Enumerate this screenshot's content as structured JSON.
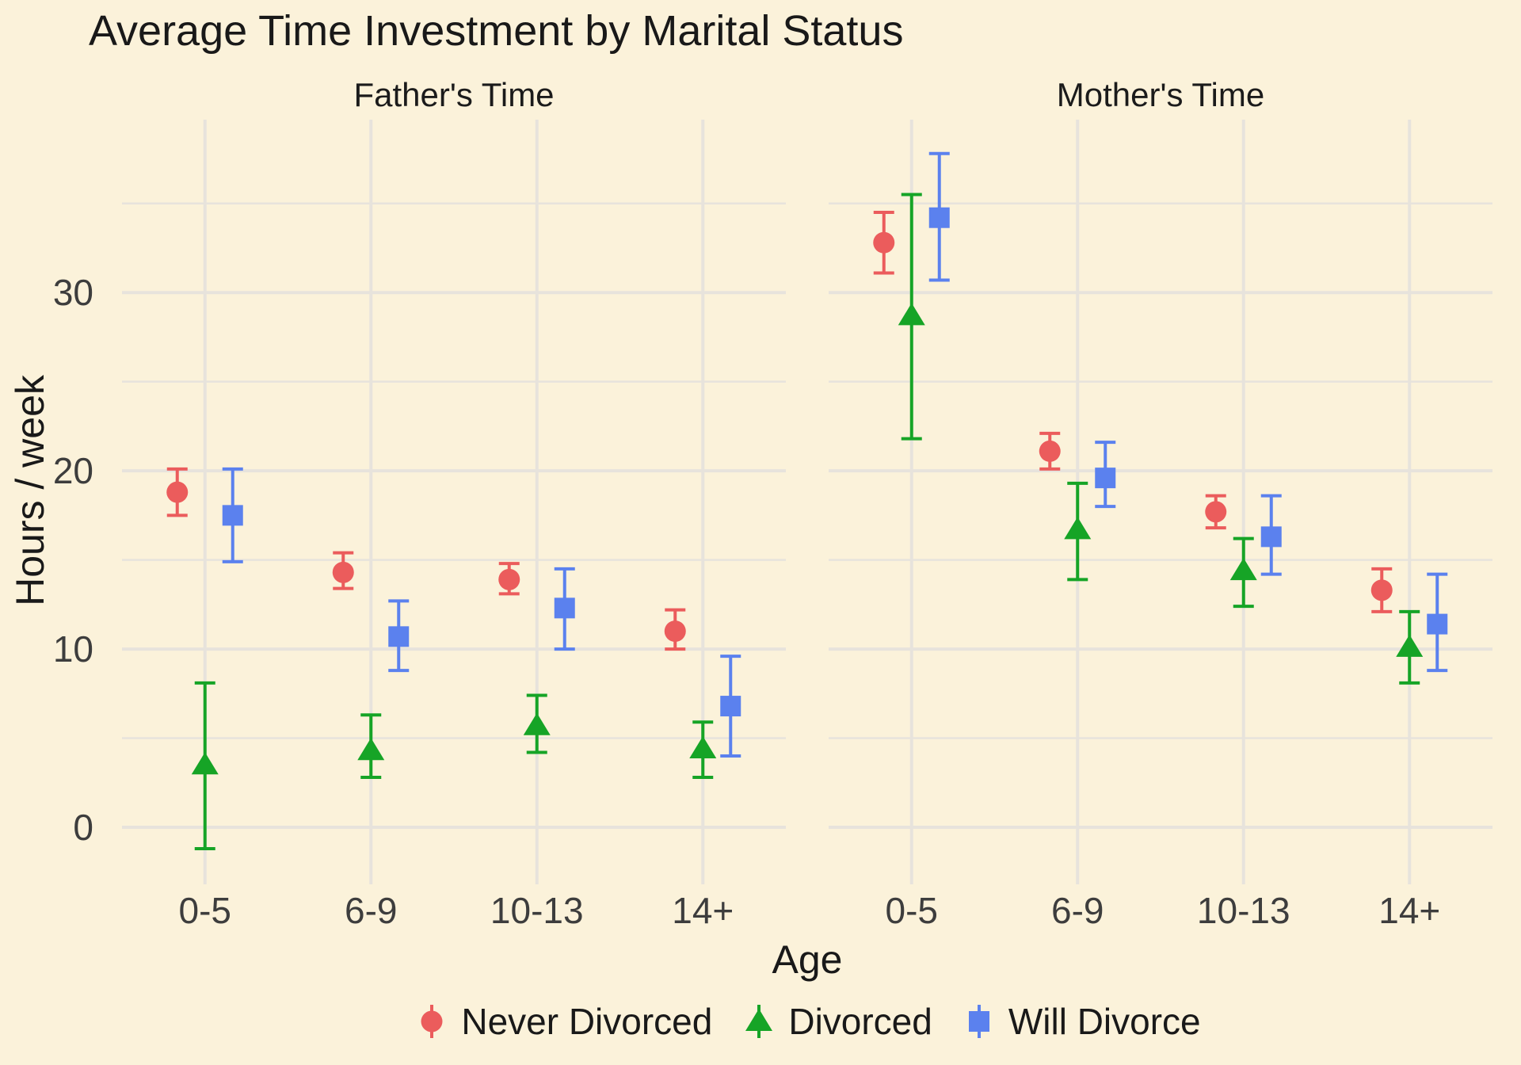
{
  "chart_data": {
    "type": "scatter",
    "subtype": "dodged-dot-plot-with-error-bars",
    "title": "Average Time Investment by Marital Status",
    "xlabel": "Age",
    "ylabel": "Hours / week",
    "categories": [
      "0-5",
      "6-9",
      "10-13",
      "14+"
    ],
    "yticks": [
      0,
      10,
      20,
      30
    ],
    "yminor": [
      5,
      15,
      25,
      35
    ],
    "ylim": [
      -3.2,
      39.7
    ],
    "grid": "on",
    "legend_position": "bottom",
    "colors": {
      "background": "#FBF2DA",
      "gridline": "#E7E3DC",
      "title_text": "#191919",
      "tick_text": "#3D3D3D",
      "never_divorced": "#EB5C5C",
      "divorced": "#16A426",
      "will_divorce": "#5B81EE"
    },
    "series_meta": [
      {
        "name": "Never Divorced",
        "shape": "circle",
        "color": "#EB5C5C"
      },
      {
        "name": "Divorced",
        "shape": "triangle",
        "color": "#16A426"
      },
      {
        "name": "Will Divorce",
        "shape": "square",
        "color": "#5B81EE"
      }
    ],
    "facets": [
      {
        "label": "Father's Time",
        "series": [
          {
            "name": "Never Divorced",
            "values": [
              18.8,
              14.3,
              13.9,
              11.0
            ],
            "ci_low": [
              17.5,
              13.4,
              13.1,
              10.0
            ],
            "ci_high": [
              20.1,
              15.4,
              14.8,
              12.2
            ]
          },
          {
            "name": "Divorced",
            "values": [
              3.5,
              4.3,
              5.7,
              4.4
            ],
            "ci_low": [
              -1.2,
              2.8,
              4.2,
              2.8
            ],
            "ci_high": [
              8.1,
              6.3,
              7.4,
              5.9
            ]
          },
          {
            "name": "Will Divorce",
            "values": [
              17.5,
              10.7,
              12.3,
              6.8
            ],
            "ci_low": [
              14.9,
              8.8,
              10.0,
              4.0
            ],
            "ci_high": [
              20.1,
              12.7,
              14.5,
              9.6
            ]
          }
        ]
      },
      {
        "label": "Mother's Time",
        "series": [
          {
            "name": "Never Divorced",
            "values": [
              32.8,
              21.1,
              17.7,
              13.3
            ],
            "ci_low": [
              31.1,
              20.1,
              16.8,
              12.1
            ],
            "ci_high": [
              34.5,
              22.1,
              18.6,
              14.5
            ]
          },
          {
            "name": "Divorced",
            "values": [
              28.7,
              16.7,
              14.4,
              10.1
            ],
            "ci_low": [
              21.8,
              13.9,
              12.4,
              8.1
            ],
            "ci_high": [
              35.5,
              19.3,
              16.2,
              12.1
            ]
          },
          {
            "name": "Will Divorce",
            "values": [
              34.2,
              19.6,
              16.3,
              11.4
            ],
            "ci_low": [
              30.7,
              18.0,
              14.2,
              8.8
            ],
            "ci_high": [
              37.8,
              21.6,
              18.6,
              14.2
            ]
          }
        ]
      }
    ],
    "legend": [
      {
        "label": "Never Divorced"
      },
      {
        "label": "Divorced"
      },
      {
        "label": "Will Divorce"
      }
    ]
  }
}
